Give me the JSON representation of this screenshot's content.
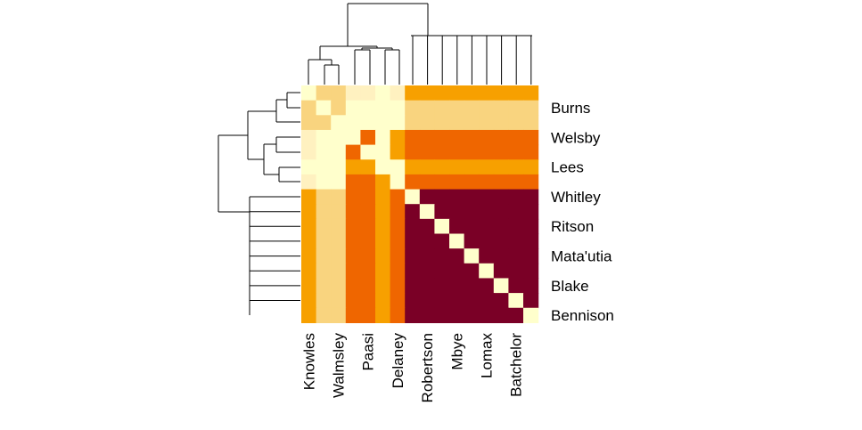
{
  "chart_data": {
    "type": "heatmap",
    "title": "",
    "xlabel": "",
    "ylabel": "",
    "row_labels": [
      "",
      "Burns",
      "",
      "Welsby",
      "",
      "Lees",
      "",
      "Whitley",
      "",
      "Ritson",
      "",
      "Mata'utia",
      "",
      "Blake",
      "",
      "Bennison"
    ],
    "col_labels": [
      "Knowles",
      "",
      "Walmsley",
      "",
      "Paasi",
      "",
      "Delaney",
      "",
      "Robertson",
      "",
      "Mbye",
      "",
      "Lomax",
      "",
      "Batchelor",
      ""
    ],
    "values": [
      [
        0,
        2,
        2,
        1,
        1,
        0,
        1,
        3,
        3,
        3,
        3,
        3,
        3,
        3,
        3,
        3
      ],
      [
        2,
        0,
        2,
        0,
        0,
        0,
        0,
        2,
        2,
        2,
        2,
        2,
        2,
        2,
        2,
        2
      ],
      [
        2,
        2,
        0,
        0,
        0,
        0,
        0,
        2,
        2,
        2,
        2,
        2,
        2,
        2,
        2,
        2
      ],
      [
        1,
        0,
        0,
        0,
        4,
        0,
        3,
        4,
        4,
        4,
        4,
        4,
        4,
        4,
        4,
        4
      ],
      [
        1,
        0,
        0,
        4,
        0,
        0,
        3,
        4,
        4,
        4,
        4,
        4,
        4,
        4,
        4,
        4
      ],
      [
        0,
        0,
        0,
        3,
        3,
        0,
        0,
        3,
        3,
        3,
        3,
        3,
        3,
        3,
        3,
        3
      ],
      [
        1,
        0,
        0,
        4,
        4,
        3,
        0,
        4,
        4,
        4,
        4,
        4,
        4,
        4,
        4,
        4
      ],
      [
        3,
        2,
        2,
        4,
        4,
        3,
        4,
        0,
        5,
        5,
        5,
        5,
        5,
        5,
        5,
        5
      ],
      [
        3,
        2,
        2,
        4,
        4,
        3,
        4,
        5,
        0,
        5,
        5,
        5,
        5,
        5,
        5,
        5
      ],
      [
        3,
        2,
        2,
        4,
        4,
        3,
        4,
        5,
        5,
        0,
        5,
        5,
        5,
        5,
        5,
        5
      ],
      [
        3,
        2,
        2,
        4,
        4,
        3,
        4,
        5,
        5,
        5,
        0,
        5,
        5,
        5,
        5,
        5
      ],
      [
        3,
        2,
        2,
        4,
        4,
        3,
        4,
        5,
        5,
        5,
        5,
        0,
        5,
        5,
        5,
        5
      ],
      [
        3,
        2,
        2,
        4,
        4,
        3,
        4,
        5,
        5,
        5,
        5,
        5,
        0,
        5,
        5,
        5
      ],
      [
        3,
        2,
        2,
        4,
        4,
        3,
        4,
        5,
        5,
        5,
        5,
        5,
        5,
        0,
        5,
        5
      ],
      [
        3,
        2,
        2,
        4,
        4,
        3,
        4,
        5,
        5,
        5,
        5,
        5,
        5,
        5,
        0,
        5
      ],
      [
        3,
        2,
        2,
        4,
        4,
        3,
        4,
        5,
        5,
        5,
        5,
        5,
        5,
        5,
        5,
        0
      ]
    ],
    "color_scale": [
      "#ffffcc",
      "#fff1c0",
      "#f9d47f",
      "#f7a000",
      "#ef6600",
      "#7a0026"
    ],
    "legend": "none",
    "grid": false
  }
}
